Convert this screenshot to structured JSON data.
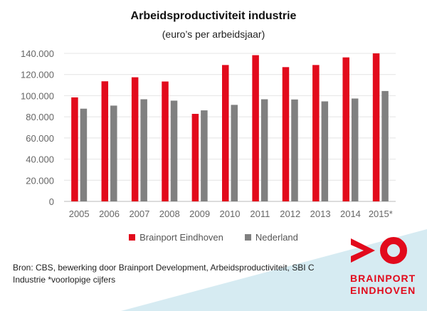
{
  "chart_data": {
    "type": "bar",
    "title": "Arbeidsproductiviteit industrie",
    "subtitle": "(euro’s per arbeidsjaar)",
    "categories": [
      "2005",
      "2006",
      "2007",
      "2008",
      "2009",
      "2010",
      "2011",
      "2012",
      "2013",
      "2014",
      "2015*"
    ],
    "series": [
      {
        "name": "Brainport Eindhoven",
        "color": "#e20a1c",
        "values": [
          98400,
          113600,
          117400,
          113400,
          82800,
          129000,
          138300,
          127000,
          129000,
          136200,
          140000
        ]
      },
      {
        "name": "Nederland",
        "color": "#808080",
        "values": [
          87700,
          90600,
          96600,
          95300,
          86100,
          91300,
          96600,
          96400,
          94600,
          97300,
          104400
        ]
      }
    ],
    "ylim": [
      0,
      140000
    ],
    "yticks": [
      "0",
      "20.000",
      "40.000",
      "60.000",
      "80.000",
      "100.000",
      "120.000",
      "140.000"
    ],
    "grid": true,
    "legend": "bottom"
  },
  "source": "Bron: CBS, bewerking door Brainport Development, Arbeidsproductiviteit, SBI C Industrie *voorlopige cijfers",
  "logo": {
    "line1": "BRAINPORT",
    "line2": "EINDHOVEN",
    "color": "#e20a1c"
  },
  "background_accent": "#d6ebf2"
}
